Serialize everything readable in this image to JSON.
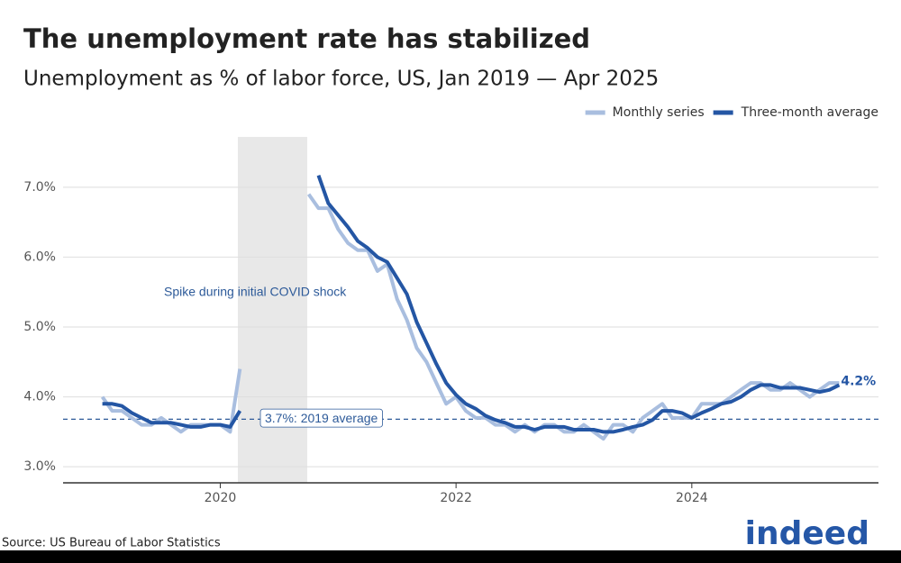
{
  "chart_data": {
    "type": "line",
    "title": "The unemployment rate has stabilized",
    "subtitle": "Unemployment as % of labor force, US, Jan 2019 — Apr 2025",
    "x": [
      "2019-01",
      "2019-02",
      "2019-03",
      "2019-04",
      "2019-05",
      "2019-06",
      "2019-07",
      "2019-08",
      "2019-09",
      "2019-10",
      "2019-11",
      "2019-12",
      "2020-01",
      "2020-02",
      "2020-03",
      "2020-04",
      "2020-05",
      "2020-06",
      "2020-07",
      "2020-08",
      "2020-09",
      "2020-10",
      "2020-11",
      "2020-12",
      "2021-01",
      "2021-02",
      "2021-03",
      "2021-04",
      "2021-05",
      "2021-06",
      "2021-07",
      "2021-08",
      "2021-09",
      "2021-10",
      "2021-11",
      "2021-12",
      "2022-01",
      "2022-02",
      "2022-03",
      "2022-04",
      "2022-05",
      "2022-06",
      "2022-07",
      "2022-08",
      "2022-09",
      "2022-10",
      "2022-11",
      "2022-12",
      "2023-01",
      "2023-02",
      "2023-03",
      "2023-04",
      "2023-05",
      "2023-06",
      "2023-07",
      "2023-08",
      "2023-09",
      "2023-10",
      "2023-11",
      "2023-12",
      "2024-01",
      "2024-02",
      "2024-03",
      "2024-04",
      "2024-05",
      "2024-06",
      "2024-07",
      "2024-08",
      "2024-09",
      "2024-10",
      "2024-11",
      "2024-12",
      "2025-01",
      "2025-02",
      "2025-03",
      "2025-04"
    ],
    "series": [
      {
        "name": "Monthly series",
        "color": "#a9bedf",
        "values": [
          4.0,
          3.8,
          3.8,
          3.7,
          3.6,
          3.6,
          3.7,
          3.6,
          3.5,
          3.6,
          3.6,
          3.6,
          3.6,
          3.5,
          4.4,
          null,
          null,
          null,
          null,
          null,
          null,
          6.9,
          6.7,
          6.7,
          6.4,
          6.2,
          6.1,
          6.1,
          5.8,
          5.9,
          5.4,
          5.1,
          4.7,
          4.5,
          4.2,
          3.9,
          4.0,
          3.8,
          3.7,
          3.7,
          3.6,
          3.6,
          3.5,
          3.6,
          3.5,
          3.6,
          3.6,
          3.5,
          3.5,
          3.6,
          3.5,
          3.4,
          3.6,
          3.6,
          3.5,
          3.7,
          3.8,
          3.9,
          3.7,
          3.7,
          3.7,
          3.9,
          3.9,
          3.9,
          4.0,
          4.1,
          4.2,
          4.2,
          4.1,
          4.1,
          4.2,
          4.1,
          4.0,
          4.1,
          4.2,
          4.2
        ]
      },
      {
        "name": "Three-month average",
        "color": "#2456a4",
        "values": [
          3.9,
          3.9,
          3.87,
          3.77,
          3.7,
          3.63,
          3.63,
          3.63,
          3.6,
          3.57,
          3.57,
          3.6,
          3.6,
          3.57,
          3.8,
          null,
          null,
          null,
          null,
          null,
          null,
          null,
          7.17,
          6.77,
          6.6,
          6.43,
          6.23,
          6.13,
          6.0,
          5.93,
          5.7,
          5.47,
          5.07,
          4.77,
          4.47,
          4.2,
          4.03,
          3.9,
          3.83,
          3.73,
          3.67,
          3.63,
          3.57,
          3.57,
          3.53,
          3.57,
          3.57,
          3.57,
          3.53,
          3.53,
          3.53,
          3.5,
          3.5,
          3.53,
          3.57,
          3.6,
          3.67,
          3.8,
          3.8,
          3.77,
          3.7,
          3.77,
          3.83,
          3.9,
          3.93,
          4.0,
          4.1,
          4.17,
          4.17,
          4.13,
          4.13,
          4.13,
          4.1,
          4.07,
          4.1,
          4.17
        ]
      }
    ],
    "end_label": "4.2%",
    "reference_line": {
      "value": 3.68,
      "label": "3.7%: 2019 average"
    },
    "annotation": "Spike during initial COVID shock",
    "xlim": [
      "2018-09",
      "2025-08"
    ],
    "xticks": [
      {
        "value": "2020-01",
        "label": "2020"
      },
      {
        "value": "2022-01",
        "label": "2022"
      },
      {
        "value": "2024-01",
        "label": "2024"
      }
    ],
    "ylim": [
      2.77,
      7.72
    ],
    "yticks": [
      {
        "value": 3,
        "label": "3.0%"
      },
      {
        "value": 4,
        "label": "4.0%"
      },
      {
        "value": 5,
        "label": "5.0%"
      },
      {
        "value": 6,
        "label": "6.0%"
      },
      {
        "value": 7,
        "label": "7.0%"
      }
    ],
    "grid": true,
    "legend": "top-right",
    "source": "Source: US Bureau of Labor Statistics",
    "logo": "indeed"
  }
}
